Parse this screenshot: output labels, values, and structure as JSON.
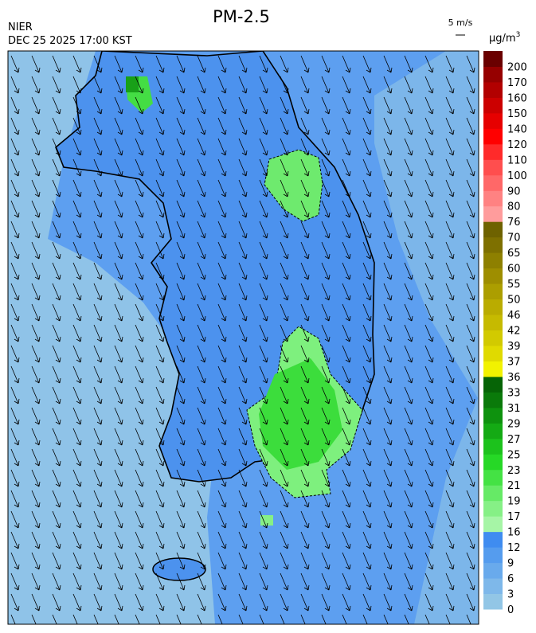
{
  "header": {
    "title": "PM-2.5",
    "agency": "NIER",
    "timestamp": "DEC 25 2025 17:00 KST",
    "wind_scale": "5 m/s"
  },
  "legend": {
    "unit": "μg/m",
    "unit_exponent": "3",
    "levels": [
      0,
      3,
      6,
      9,
      12,
      16,
      17,
      19,
      21,
      23,
      25,
      27,
      29,
      31,
      33,
      36,
      37,
      39,
      42,
      46,
      50,
      55,
      60,
      65,
      70,
      76,
      80,
      90,
      100,
      110,
      120,
      140,
      150,
      160,
      170,
      200
    ],
    "colors": [
      "#92c6e6",
      "#7eb8ea",
      "#69aaec",
      "#559cee",
      "#3f8cf0",
      "#a6f5a6",
      "#86f086",
      "#66ea66",
      "#44e244",
      "#26d826",
      "#1cc21c",
      "#14aa14",
      "#0e920e",
      "#0a7a0a",
      "#066406",
      "#f2f200",
      "#e0da00",
      "#d2ca00",
      "#c6ba00",
      "#baac00",
      "#ac9e00",
      "#9e8e00",
      "#8e8000",
      "#7e7000",
      "#6e6200",
      "#ff9c9c",
      "#ff8282",
      "#ff6868",
      "#ff4e4e",
      "#ff2a2a",
      "#ff0000",
      "#e60000",
      "#cc0000",
      "#b20000",
      "#960000",
      "#6a0000"
    ]
  }
}
